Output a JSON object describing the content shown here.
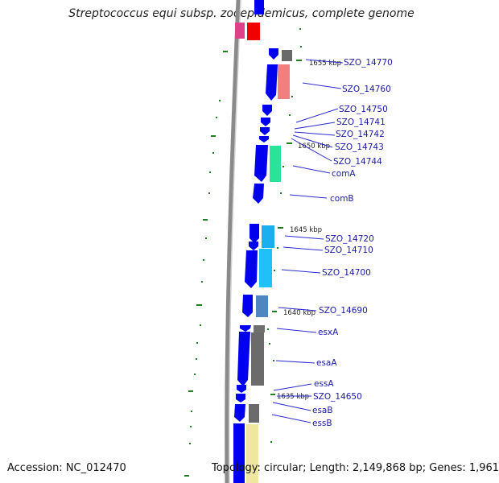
{
  "title": "Streptococcus equi subsp. zooepidemicus, complete genome",
  "footer": {
    "accession": "Accession: NC_012470",
    "summary": "Topology: circular; Length: 2,149,868 bp; Genes: 1,961"
  },
  "ticks": [
    {
      "label": "1655 kbp"
    },
    {
      "label": "1650 kbp"
    },
    {
      "label": "1645 kbp"
    },
    {
      "label": "1640 kbp"
    },
    {
      "label": "1635 kbp"
    }
  ],
  "genes": [
    {
      "label": "SZO_14770"
    },
    {
      "label": "SZO_14760"
    },
    {
      "label": "SZO_14750"
    },
    {
      "label": "SZO_14741"
    },
    {
      "label": "SZO_14742"
    },
    {
      "label": "SZO_14743"
    },
    {
      "label": "SZO_14744"
    },
    {
      "label": "comA"
    },
    {
      "label": "comB"
    },
    {
      "label": "SZO_14720"
    },
    {
      "label": "SZO_14710"
    },
    {
      "label": "SZO_14700"
    },
    {
      "label": "SZO_14690"
    },
    {
      "label": "esxA"
    },
    {
      "label": "esaA"
    },
    {
      "label": "essA"
    },
    {
      "label": "SZO_14650"
    },
    {
      "label": "esaB"
    },
    {
      "label": "essB"
    }
  ],
  "colors": {
    "backbone": "#8a8a8a",
    "cds": "#0000ee",
    "tick": "#1e7d1e",
    "label_line": "#2a2ad0",
    "label_text": "#1a1aa6"
  }
}
